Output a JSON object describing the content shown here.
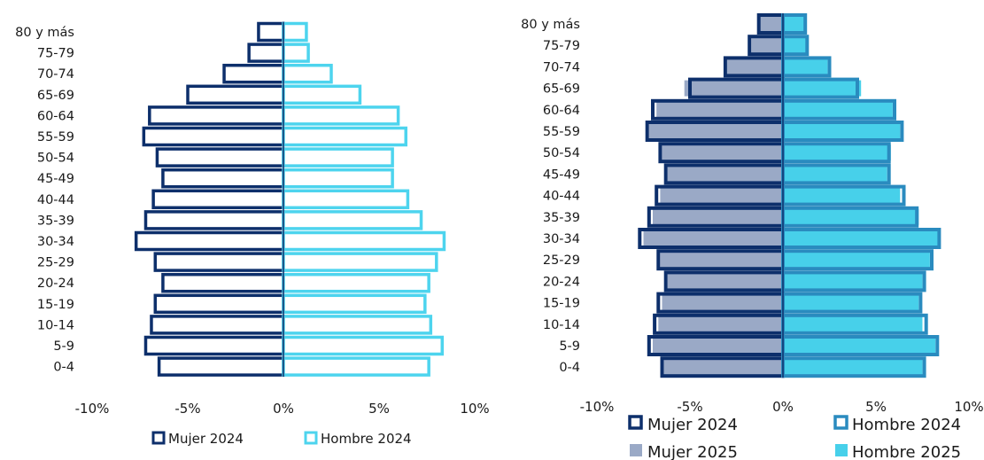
{
  "colors": {
    "mujer2024": "#0d2f6b",
    "hombre2024_left": "#4dd4ee",
    "hombre2024_right": "#2a8bbf",
    "mujer2025": "#9aa9c6",
    "hombre2025": "#47d0ea",
    "center_line": "#0d2f6b"
  },
  "chart_data": [
    {
      "type": "bar",
      "orientation": "horizontal",
      "title": "",
      "categories": [
        "80 y más",
        "75-79",
        "70-74",
        "65-69",
        "60-64",
        "55-59",
        "50-54",
        "45-49",
        "40-44",
        "35-39",
        "30-34",
        "25-29",
        "20-24",
        "15-19",
        "10-14",
        "5-9",
        "0-4"
      ],
      "xlim": [
        -10,
        10
      ],
      "xticks": [
        "-10%",
        "-5%",
        "0%",
        "5%",
        "10%"
      ],
      "xtick_values": [
        -10,
        -5,
        0,
        5,
        10
      ],
      "series": [
        {
          "name": "Mujer 2024",
          "style": "outline",
          "values": [
            -1.3,
            -1.8,
            -3.1,
            -5.0,
            -7.0,
            -7.3,
            -6.6,
            -6.3,
            -6.8,
            -7.2,
            -7.7,
            -6.7,
            -6.3,
            -6.7,
            -6.9,
            -7.2,
            -6.5
          ]
        },
        {
          "name": "Hombre 2024",
          "style": "outline",
          "values": [
            1.2,
            1.3,
            2.5,
            4.0,
            6.0,
            6.4,
            5.7,
            5.7,
            6.5,
            7.2,
            8.4,
            8.0,
            7.6,
            7.4,
            7.7,
            8.3,
            7.6
          ]
        }
      ],
      "legend": {
        "placement": "bottom",
        "items": [
          "Mujer 2024",
          "Hombre 2024"
        ]
      }
    },
    {
      "type": "bar",
      "orientation": "horizontal",
      "title": "",
      "categories": [
        "80 y más",
        "75-79",
        "70-74",
        "65-69",
        "60-64",
        "55-59",
        "50-54",
        "45-49",
        "40-44",
        "35-39",
        "30-34",
        "25-29",
        "20-24",
        "15-19",
        "10-14",
        "5-9",
        "0-4"
      ],
      "xlim": [
        -10,
        10
      ],
      "xticks": [
        "-10%",
        "-5%",
        "0%",
        "5%",
        "10%"
      ],
      "xtick_values": [
        -10,
        -5,
        0,
        5,
        10
      ],
      "series": [
        {
          "name": "Mujer 2025",
          "style": "fill",
          "values": [
            -1.3,
            -1.7,
            -3.0,
            -5.3,
            -6.8,
            -7.2,
            -6.5,
            -6.2,
            -6.6,
            -7.0,
            -7.5,
            -6.6,
            -6.2,
            -6.5,
            -6.7,
            -7.0,
            -6.4
          ]
        },
        {
          "name": "Hombre 2025",
          "style": "fill",
          "values": [
            1.2,
            1.3,
            2.4,
            4.2,
            5.9,
            6.3,
            5.8,
            5.6,
            6.3,
            7.3,
            8.4,
            7.9,
            7.5,
            7.3,
            7.5,
            8.2,
            7.5
          ]
        },
        {
          "name": "Mujer 2024",
          "style": "outline",
          "values": [
            -1.3,
            -1.8,
            -3.1,
            -5.0,
            -7.0,
            -7.3,
            -6.6,
            -6.3,
            -6.8,
            -7.2,
            -7.7,
            -6.7,
            -6.3,
            -6.7,
            -6.9,
            -7.2,
            -6.5
          ]
        },
        {
          "name": "Hombre 2024",
          "style": "outline",
          "values": [
            1.2,
            1.3,
            2.5,
            4.0,
            6.0,
            6.4,
            5.7,
            5.7,
            6.5,
            7.2,
            8.4,
            8.0,
            7.6,
            7.4,
            7.7,
            8.3,
            7.6
          ]
        }
      ],
      "legend": {
        "placement": "bottom",
        "items": [
          "Mujer 2024",
          "Hombre 2024",
          "Mujer 2025",
          "Hombre 2025"
        ]
      }
    }
  ]
}
